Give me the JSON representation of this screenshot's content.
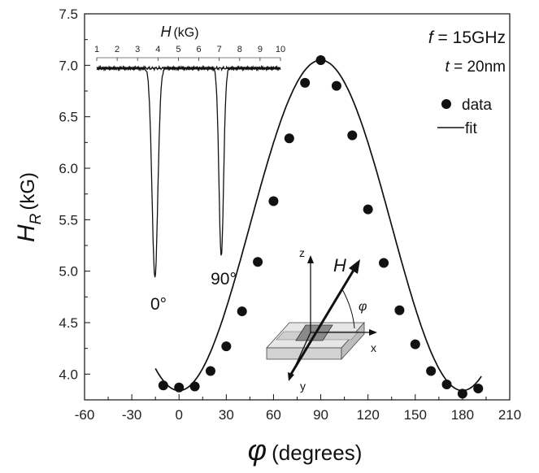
{
  "chart_data": {
    "type": "scatter",
    "xlabel": {
      "symbol": "φ",
      "unit": "(degrees)"
    },
    "ylabel": {
      "symbol": "H",
      "sub": "R",
      "unit": "(kG)"
    },
    "xlim": [
      -60,
      210
    ],
    "ylim": [
      3.75,
      7.5
    ],
    "xticks": [
      "-60",
      "-30",
      "0",
      "30",
      "60",
      "90",
      "120",
      "150",
      "180",
      "210"
    ],
    "yticks": [
      "4.0",
      "4.5",
      "5.0",
      "5.5",
      "6.0",
      "6.5",
      "7.0",
      "7.5"
    ],
    "grid": false,
    "legend": {
      "position": "top-right",
      "data_label": "data",
      "fit_label": "fit"
    },
    "annotations": {
      "freq": {
        "var": "f",
        "rest": " = 15GHz"
      },
      "thick": {
        "var": "t",
        "rest": " = 20nm"
      }
    },
    "series": [
      {
        "name": "data",
        "x": [
          -10,
          0,
          10,
          20,
          30,
          40,
          50,
          60,
          70,
          80,
          90,
          100,
          110,
          120,
          130,
          140,
          150,
          160,
          170,
          180,
          190
        ],
        "y": [
          3.89,
          3.87,
          3.88,
          4.03,
          4.27,
          4.61,
          5.09,
          5.68,
          6.29,
          6.83,
          7.05,
          6.8,
          6.32,
          5.6,
          5.08,
          4.62,
          4.29,
          4.03,
          3.9,
          3.81,
          3.86
        ]
      }
    ],
    "fit": {
      "min": 3.84,
      "max": 7.05,
      "center": 90,
      "period": 180
    },
    "inset": {
      "xlabel": {
        "symbol": "H",
        "unit": "(kG)"
      },
      "xlim": [
        1,
        10
      ],
      "xticks": [
        "1",
        "2",
        "3",
        "4",
        "5",
        "6",
        "7",
        "8",
        "9",
        "10"
      ],
      "curves": [
        {
          "label": "0°",
          "dip_at": 3.85
        },
        {
          "label": "90°",
          "dip_at": 7.1
        }
      ]
    },
    "geometry_sketch": {
      "axes": [
        "x",
        "y",
        "z"
      ],
      "field": "H",
      "angle": "φ"
    }
  }
}
